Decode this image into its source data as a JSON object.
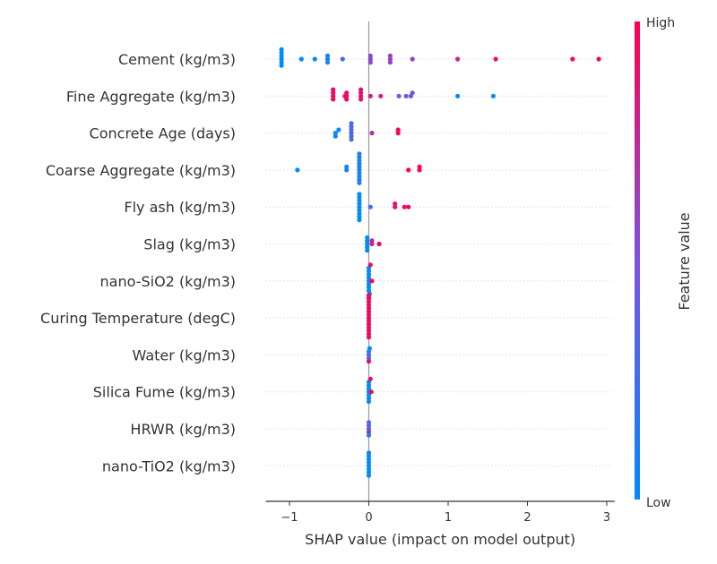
{
  "chart_data": {
    "type": "scatter",
    "subtype": "shap-beeswarm-summary",
    "xlabel": "SHAP value (impact on model output)",
    "xlim": [
      -1.3,
      3.1
    ],
    "xticks": [
      -1,
      0,
      1,
      2,
      3
    ],
    "xtick_labels": [
      "−1",
      "0",
      "1",
      "2",
      "3"
    ],
    "zero_line": true,
    "colorbar": {
      "title": "Feature value",
      "high_label": "High",
      "low_label": "Low",
      "low_color": "#008bfb",
      "high_color": "#ff0052",
      "placement": "right"
    },
    "features": [
      {
        "name": "Cement (kg/m3)",
        "points": [
          {
            "x": -1.1,
            "v": 0.0
          },
          {
            "x": -1.1,
            "v": 0.0
          },
          {
            "x": -1.1,
            "v": 0.0
          },
          {
            "x": -1.1,
            "v": 0.0
          },
          {
            "x": -1.1,
            "v": 0.0
          },
          {
            "x": -1.1,
            "v": 0.0
          },
          {
            "x": -0.85,
            "v": 0.05
          },
          {
            "x": -0.68,
            "v": 0.05
          },
          {
            "x": -0.52,
            "v": 0.08
          },
          {
            "x": -0.52,
            "v": 0.08
          },
          {
            "x": -0.52,
            "v": 0.08
          },
          {
            "x": -0.33,
            "v": 0.25
          },
          {
            "x": 0.02,
            "v": 0.55
          },
          {
            "x": 0.02,
            "v": 0.55
          },
          {
            "x": 0.02,
            "v": 0.55
          },
          {
            "x": 0.27,
            "v": 0.6
          },
          {
            "x": 0.27,
            "v": 0.6
          },
          {
            "x": 0.27,
            "v": 0.6
          },
          {
            "x": 0.55,
            "v": 0.6
          },
          {
            "x": 1.12,
            "v": 0.8
          },
          {
            "x": 1.6,
            "v": 0.9
          },
          {
            "x": 2.57,
            "v": 1.0
          },
          {
            "x": 2.9,
            "v": 1.0
          }
        ]
      },
      {
        "name": "Fine Aggregate (kg/m3)",
        "points": [
          {
            "x": -0.45,
            "v": 0.95
          },
          {
            "x": -0.45,
            "v": 0.95
          },
          {
            "x": -0.45,
            "v": 0.95
          },
          {
            "x": -0.45,
            "v": 0.95
          },
          {
            "x": -0.28,
            "v": 0.95
          },
          {
            "x": -0.28,
            "v": 0.95
          },
          {
            "x": -0.28,
            "v": 0.95
          },
          {
            "x": -0.3,
            "v": 0.95
          },
          {
            "x": -0.1,
            "v": 0.9
          },
          {
            "x": -0.1,
            "v": 0.9
          },
          {
            "x": -0.1,
            "v": 0.9
          },
          {
            "x": -0.1,
            "v": 0.9
          },
          {
            "x": 0.02,
            "v": 0.85
          },
          {
            "x": 0.15,
            "v": 0.8
          },
          {
            "x": 0.38,
            "v": 0.45
          },
          {
            "x": 0.47,
            "v": 0.45
          },
          {
            "x": 0.53,
            "v": 0.4
          },
          {
            "x": 0.55,
            "v": 0.4
          },
          {
            "x": 1.12,
            "v": 0.0
          },
          {
            "x": 1.57,
            "v": 0.0
          }
        ]
      },
      {
        "name": "Concrete Age (days)",
        "points": [
          {
            "x": -0.42,
            "v": 0.05
          },
          {
            "x": -0.38,
            "v": 0.05
          },
          {
            "x": -0.42,
            "v": 0.05
          },
          {
            "x": -0.22,
            "v": 0.3
          },
          {
            "x": -0.22,
            "v": 0.3
          },
          {
            "x": -0.22,
            "v": 0.3
          },
          {
            "x": -0.22,
            "v": 0.3
          },
          {
            "x": -0.22,
            "v": 0.3
          },
          {
            "x": -0.22,
            "v": 0.3
          },
          {
            "x": 0.04,
            "v": 0.7
          },
          {
            "x": 0.37,
            "v": 0.95
          },
          {
            "x": 0.37,
            "v": 0.95
          }
        ]
      },
      {
        "name": "Coarse Aggregate (kg/m3)",
        "points": [
          {
            "x": -0.9,
            "v": 0.0
          },
          {
            "x": -0.28,
            "v": 0.1
          },
          {
            "x": -0.28,
            "v": 0.1
          },
          {
            "x": -0.12,
            "v": 0.1
          },
          {
            "x": -0.12,
            "v": 0.1
          },
          {
            "x": -0.12,
            "v": 0.1
          },
          {
            "x": -0.12,
            "v": 0.1
          },
          {
            "x": -0.12,
            "v": 0.1
          },
          {
            "x": -0.12,
            "v": 0.1
          },
          {
            "x": -0.12,
            "v": 0.1
          },
          {
            "x": -0.12,
            "v": 0.1
          },
          {
            "x": -0.12,
            "v": 0.1
          },
          {
            "x": -0.12,
            "v": 0.1
          },
          {
            "x": 0.5,
            "v": 1.0
          },
          {
            "x": 0.64,
            "v": 1.0
          },
          {
            "x": 0.64,
            "v": 1.0
          }
        ]
      },
      {
        "name": "Fly ash (kg/m3)",
        "points": [
          {
            "x": -0.12,
            "v": 0.0
          },
          {
            "x": -0.12,
            "v": 0.0
          },
          {
            "x": -0.12,
            "v": 0.0
          },
          {
            "x": -0.12,
            "v": 0.0
          },
          {
            "x": -0.12,
            "v": 0.0
          },
          {
            "x": -0.12,
            "v": 0.0
          },
          {
            "x": -0.12,
            "v": 0.0
          },
          {
            "x": -0.12,
            "v": 0.0
          },
          {
            "x": -0.12,
            "v": 0.0
          },
          {
            "x": 0.02,
            "v": 0.3
          },
          {
            "x": 0.33,
            "v": 0.9
          },
          {
            "x": 0.33,
            "v": 0.9
          },
          {
            "x": 0.45,
            "v": 0.95
          },
          {
            "x": 0.5,
            "v": 0.95
          }
        ]
      },
      {
        "name": "Slag (kg/m3)",
        "points": [
          {
            "x": -0.02,
            "v": 0.0
          },
          {
            "x": -0.02,
            "v": 0.0
          },
          {
            "x": -0.02,
            "v": 0.0
          },
          {
            "x": -0.02,
            "v": 0.0
          },
          {
            "x": -0.02,
            "v": 0.0
          },
          {
            "x": 0.04,
            "v": 0.8
          },
          {
            "x": 0.04,
            "v": 0.8
          },
          {
            "x": 0.13,
            "v": 1.0
          }
        ]
      },
      {
        "name": "nano-SiO2 (kg/m3)",
        "points": [
          {
            "x": 0.0,
            "v": 0.0
          },
          {
            "x": 0.0,
            "v": 0.0
          },
          {
            "x": 0.0,
            "v": 0.0
          },
          {
            "x": 0.0,
            "v": 0.0
          },
          {
            "x": 0.0,
            "v": 0.0
          },
          {
            "x": 0.0,
            "v": 0.0
          },
          {
            "x": 0.0,
            "v": 0.0
          },
          {
            "x": 0.0,
            "v": 0.0
          },
          {
            "x": 0.01,
            "v": 0.0
          },
          {
            "x": 0.02,
            "v": 0.9
          },
          {
            "x": 0.04,
            "v": 1.0
          },
          {
            "x": 0.0,
            "v": 0.8
          }
        ]
      },
      {
        "name": "Curing Temperature (degC)",
        "points": [
          {
            "x": 0.0,
            "v": 0.95
          },
          {
            "x": 0.0,
            "v": 0.95
          },
          {
            "x": 0.0,
            "v": 0.95
          },
          {
            "x": 0.0,
            "v": 0.95
          },
          {
            "x": 0.0,
            "v": 0.95
          },
          {
            "x": 0.0,
            "v": 0.95
          },
          {
            "x": 0.0,
            "v": 0.95
          },
          {
            "x": 0.0,
            "v": 0.95
          },
          {
            "x": 0.0,
            "v": 0.95
          },
          {
            "x": 0.0,
            "v": 0.95
          },
          {
            "x": 0.0,
            "v": 0.95
          },
          {
            "x": 0.0,
            "v": 0.95
          },
          {
            "x": 0.0,
            "v": 0.95
          },
          {
            "x": 0.0,
            "v": 0.95
          }
        ]
      },
      {
        "name": "Water (kg/m3)",
        "points": [
          {
            "x": 0.0,
            "v": 0.45
          },
          {
            "x": 0.0,
            "v": 0.2
          },
          {
            "x": 0.0,
            "v": 0.2
          },
          {
            "x": 0.01,
            "v": 0.0
          },
          {
            "x": 0.0,
            "v": 0.95
          }
        ]
      },
      {
        "name": "Silica Fume (kg/m3)",
        "points": [
          {
            "x": 0.0,
            "v": 0.0
          },
          {
            "x": 0.0,
            "v": 0.0
          },
          {
            "x": 0.0,
            "v": 0.0
          },
          {
            "x": 0.0,
            "v": 0.0
          },
          {
            "x": 0.0,
            "v": 0.0
          },
          {
            "x": 0.0,
            "v": 0.0
          },
          {
            "x": 0.0,
            "v": 0.0
          },
          {
            "x": 0.02,
            "v": 0.95
          },
          {
            "x": 0.03,
            "v": 0.95
          }
        ]
      },
      {
        "name": "HRWR (kg/m3)",
        "points": [
          {
            "x": 0.0,
            "v": 0.1
          },
          {
            "x": 0.0,
            "v": 0.45
          },
          {
            "x": 0.0,
            "v": 0.8
          },
          {
            "x": 0.0,
            "v": 0.3
          },
          {
            "x": 0.0,
            "v": 0.05
          }
        ]
      },
      {
        "name": "nano-TiO2 (kg/m3)",
        "points": [
          {
            "x": 0.0,
            "v": 0.0
          },
          {
            "x": 0.0,
            "v": 0.0
          },
          {
            "x": 0.0,
            "v": 0.0
          },
          {
            "x": 0.0,
            "v": 0.0
          },
          {
            "x": 0.0,
            "v": 0.0
          },
          {
            "x": 0.0,
            "v": 0.0
          },
          {
            "x": 0.0,
            "v": 0.0
          },
          {
            "x": 0.0,
            "v": 0.0
          }
        ]
      }
    ]
  }
}
